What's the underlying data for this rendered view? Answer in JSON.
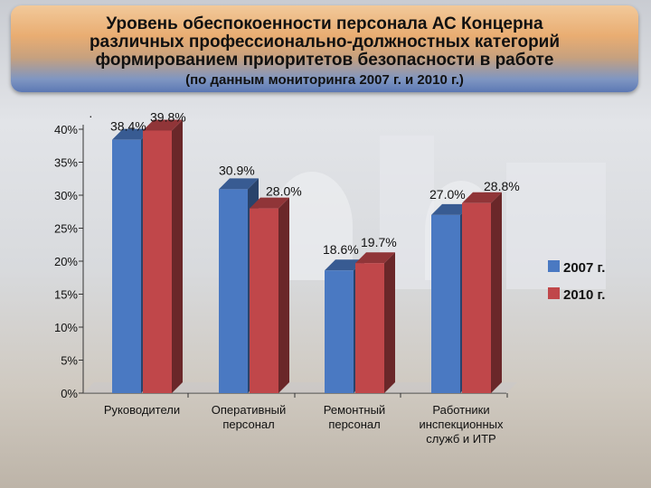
{
  "title_lines": [
    "Уровень обеспокоенности персонала АС Концерна",
    "различных профессионально-должностных категорий",
    "формированием приоритетов безопасности в работе"
  ],
  "subtitle": "(по данным мониторинга 2007 г. и 2010 г.)",
  "colors": {
    "s2007": "#4a79c2",
    "s2010": "#c0474a"
  },
  "chart_data": {
    "type": "bar",
    "categories": [
      [
        "Руководители"
      ],
      [
        "Оперативный",
        "персонал"
      ],
      [
        "Ремонтный",
        "персонал"
      ],
      [
        "Работники",
        "инспекционных",
        "служб и ИТР"
      ]
    ],
    "series": [
      {
        "name": "2007 г.",
        "values": [
          38.4,
          30.9,
          18.6,
          27.0
        ],
        "labels": [
          "38.4%",
          "30.9%",
          "18.6%",
          "27.0%"
        ]
      },
      {
        "name": "2010 г.",
        "values": [
          39.8,
          28.0,
          19.7,
          28.8
        ],
        "labels": [
          "39.8%",
          "28.0%",
          "19.7%",
          "28.8%"
        ]
      }
    ],
    "yticks": [
      "0%",
      "5%",
      "10%",
      "15%",
      "20%",
      "25%",
      "30%",
      "35%",
      "40%"
    ],
    "ylim": [
      0,
      40
    ],
    "legend": "right",
    "grid": false
  }
}
